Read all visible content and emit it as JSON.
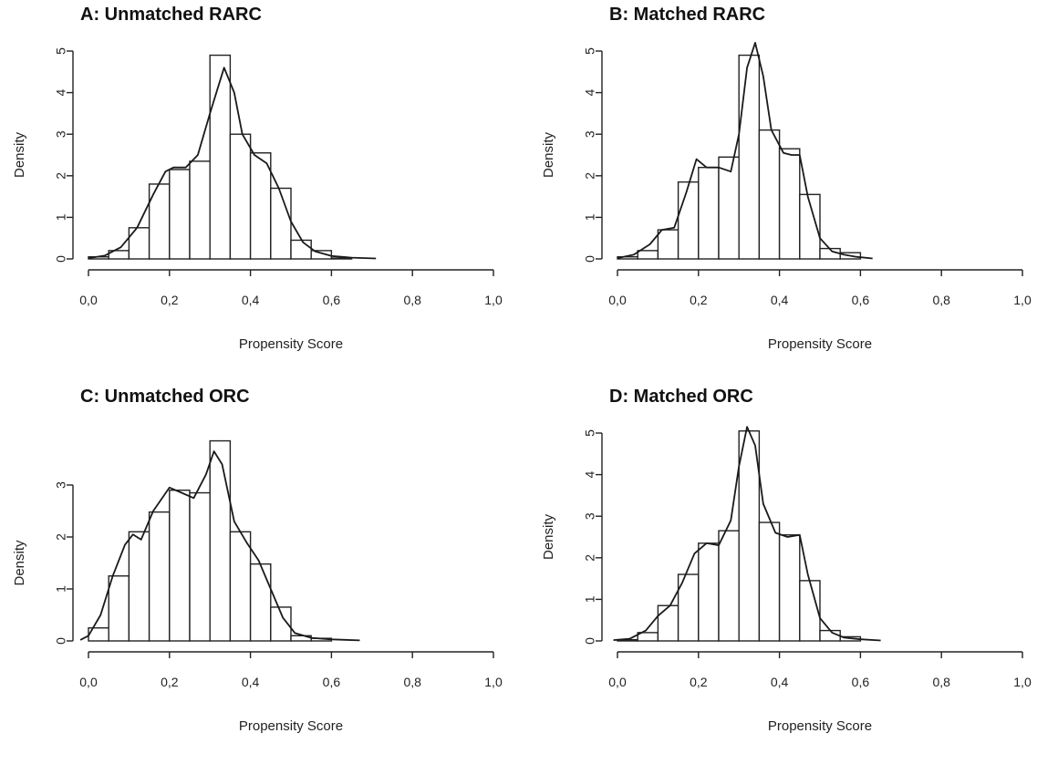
{
  "chart_data": [
    {
      "type": "bar",
      "title": "A: Unmatched RARC",
      "xlabel": "Propensity Score",
      "ylabel": "Density",
      "xlim": [
        0,
        1
      ],
      "ylim": [
        0,
        5
      ],
      "x_ticks": [
        "0,0",
        "0,2",
        "0,4",
        "0,6",
        "0,8",
        "1,0"
      ],
      "y_ticks": [
        "0",
        "1",
        "2",
        "3",
        "4",
        "5"
      ],
      "bin_width": 0.05,
      "bins": [
        {
          "x0": 0.0,
          "x1": 0.05,
          "value": 0.05
        },
        {
          "x0": 0.05,
          "x1": 0.1,
          "value": 0.2
        },
        {
          "x0": 0.1,
          "x1": 0.15,
          "value": 0.75
        },
        {
          "x0": 0.15,
          "x1": 0.2,
          "value": 1.8
        },
        {
          "x0": 0.2,
          "x1": 0.25,
          "value": 2.15
        },
        {
          "x0": 0.25,
          "x1": 0.3,
          "value": 2.35
        },
        {
          "x0": 0.3,
          "x1": 0.35,
          "value": 4.9
        },
        {
          "x0": 0.35,
          "x1": 0.4,
          "value": 3.0
        },
        {
          "x0": 0.4,
          "x1": 0.45,
          "value": 2.55
        },
        {
          "x0": 0.45,
          "x1": 0.5,
          "value": 1.7
        },
        {
          "x0": 0.5,
          "x1": 0.55,
          "value": 0.45
        },
        {
          "x0": 0.55,
          "x1": 0.6,
          "value": 0.2
        },
        {
          "x0": 0.6,
          "x1": 0.65,
          "value": 0.02
        }
      ],
      "density_curve": [
        [
          0.0,
          0.02
        ],
        [
          0.04,
          0.08
        ],
        [
          0.08,
          0.28
        ],
        [
          0.12,
          0.75
        ],
        [
          0.16,
          1.55
        ],
        [
          0.19,
          2.1
        ],
        [
          0.21,
          2.2
        ],
        [
          0.24,
          2.2
        ],
        [
          0.27,
          2.5
        ],
        [
          0.3,
          3.5
        ],
        [
          0.335,
          4.6
        ],
        [
          0.36,
          4.0
        ],
        [
          0.38,
          3.0
        ],
        [
          0.41,
          2.5
        ],
        [
          0.44,
          2.3
        ],
        [
          0.47,
          1.7
        ],
        [
          0.5,
          0.9
        ],
        [
          0.53,
          0.4
        ],
        [
          0.56,
          0.18
        ],
        [
          0.6,
          0.07
        ],
        [
          0.65,
          0.03
        ],
        [
          0.71,
          0.01
        ]
      ]
    },
    {
      "type": "bar",
      "title": "B: Matched RARC",
      "xlabel": "Propensity Score",
      "ylabel": "Density",
      "xlim": [
        0,
        1
      ],
      "ylim": [
        0,
        5
      ],
      "x_ticks": [
        "0,0",
        "0,2",
        "0,4",
        "0,6",
        "0,8",
        "1,0"
      ],
      "y_ticks": [
        "0",
        "1",
        "2",
        "3",
        "4",
        "5"
      ],
      "bin_width": 0.05,
      "bins": [
        {
          "x0": 0.0,
          "x1": 0.05,
          "value": 0.05
        },
        {
          "x0": 0.05,
          "x1": 0.1,
          "value": 0.2
        },
        {
          "x0": 0.1,
          "x1": 0.15,
          "value": 0.7
        },
        {
          "x0": 0.15,
          "x1": 0.2,
          "value": 1.85
        },
        {
          "x0": 0.2,
          "x1": 0.25,
          "value": 2.2
        },
        {
          "x0": 0.25,
          "x1": 0.3,
          "value": 2.45
        },
        {
          "x0": 0.3,
          "x1": 0.35,
          "value": 4.9
        },
        {
          "x0": 0.35,
          "x1": 0.4,
          "value": 3.1
        },
        {
          "x0": 0.4,
          "x1": 0.45,
          "value": 2.65
        },
        {
          "x0": 0.45,
          "x1": 0.5,
          "value": 1.55
        },
        {
          "x0": 0.5,
          "x1": 0.55,
          "value": 0.25
        },
        {
          "x0": 0.55,
          "x1": 0.6,
          "value": 0.15
        }
      ],
      "density_curve": [
        [
          0.0,
          0.02
        ],
        [
          0.04,
          0.1
        ],
        [
          0.08,
          0.35
        ],
        [
          0.11,
          0.7
        ],
        [
          0.14,
          0.75
        ],
        [
          0.17,
          1.6
        ],
        [
          0.195,
          2.4
        ],
        [
          0.22,
          2.2
        ],
        [
          0.25,
          2.2
        ],
        [
          0.28,
          2.1
        ],
        [
          0.3,
          3.0
        ],
        [
          0.32,
          4.6
        ],
        [
          0.34,
          5.2
        ],
        [
          0.36,
          4.4
        ],
        [
          0.38,
          3.1
        ],
        [
          0.41,
          2.55
        ],
        [
          0.43,
          2.5
        ],
        [
          0.45,
          2.5
        ],
        [
          0.47,
          1.5
        ],
        [
          0.5,
          0.5
        ],
        [
          0.53,
          0.18
        ],
        [
          0.56,
          0.1
        ],
        [
          0.59,
          0.05
        ],
        [
          0.63,
          0.01
        ]
      ]
    },
    {
      "type": "bar",
      "title": "C: Unmatched ORC",
      "xlabel": "Propensity Score",
      "ylabel": "Density",
      "xlim": [
        0,
        1
      ],
      "ylim": [
        0,
        4
      ],
      "x_ticks": [
        "0,0",
        "0,2",
        "0,4",
        "0,6",
        "0,8",
        "1,0"
      ],
      "y_ticks": [
        "0",
        "1",
        "2",
        "3"
      ],
      "bin_width": 0.05,
      "bins": [
        {
          "x0": 0.0,
          "x1": 0.05,
          "value": 0.25
        },
        {
          "x0": 0.05,
          "x1": 0.1,
          "value": 1.25
        },
        {
          "x0": 0.1,
          "x1": 0.15,
          "value": 2.1
        },
        {
          "x0": 0.15,
          "x1": 0.2,
          "value": 2.48
        },
        {
          "x0": 0.2,
          "x1": 0.25,
          "value": 2.9
        },
        {
          "x0": 0.25,
          "x1": 0.3,
          "value": 2.85
        },
        {
          "x0": 0.3,
          "x1": 0.35,
          "value": 3.85
        },
        {
          "x0": 0.35,
          "x1": 0.4,
          "value": 2.1
        },
        {
          "x0": 0.4,
          "x1": 0.45,
          "value": 1.48
        },
        {
          "x0": 0.45,
          "x1": 0.5,
          "value": 0.65
        },
        {
          "x0": 0.5,
          "x1": 0.55,
          "value": 0.1
        },
        {
          "x0": 0.55,
          "x1": 0.6,
          "value": 0.05
        }
      ],
      "density_curve": [
        [
          -0.02,
          0.02
        ],
        [
          0.0,
          0.1
        ],
        [
          0.03,
          0.5
        ],
        [
          0.06,
          1.25
        ],
        [
          0.09,
          1.85
        ],
        [
          0.11,
          2.05
        ],
        [
          0.13,
          1.95
        ],
        [
          0.16,
          2.5
        ],
        [
          0.2,
          2.95
        ],
        [
          0.23,
          2.85
        ],
        [
          0.26,
          2.75
        ],
        [
          0.29,
          3.2
        ],
        [
          0.31,
          3.65
        ],
        [
          0.33,
          3.4
        ],
        [
          0.36,
          2.3
        ],
        [
          0.39,
          1.9
        ],
        [
          0.42,
          1.55
        ],
        [
          0.45,
          1.0
        ],
        [
          0.48,
          0.45
        ],
        [
          0.51,
          0.15
        ],
        [
          0.55,
          0.06
        ],
        [
          0.6,
          0.03
        ],
        [
          0.67,
          0.01
        ]
      ]
    },
    {
      "type": "bar",
      "title": "D: Matched ORC",
      "xlabel": "Propensity Score",
      "ylabel": "Density",
      "xlim": [
        0,
        1
      ],
      "ylim": [
        0,
        5
      ],
      "x_ticks": [
        "0,0",
        "0,2",
        "0,4",
        "0,6",
        "0,8",
        "1,0"
      ],
      "y_ticks": [
        "0",
        "1",
        "2",
        "3",
        "4",
        "5"
      ],
      "bin_width": 0.05,
      "bins": [
        {
          "x0": 0.0,
          "x1": 0.05,
          "value": 0.03
        },
        {
          "x0": 0.05,
          "x1": 0.1,
          "value": 0.2
        },
        {
          "x0": 0.1,
          "x1": 0.15,
          "value": 0.85
        },
        {
          "x0": 0.15,
          "x1": 0.2,
          "value": 1.6
        },
        {
          "x0": 0.2,
          "x1": 0.25,
          "value": 2.35
        },
        {
          "x0": 0.25,
          "x1": 0.3,
          "value": 2.65
        },
        {
          "x0": 0.3,
          "x1": 0.35,
          "value": 5.05
        },
        {
          "x0": 0.35,
          "x1": 0.4,
          "value": 2.85
        },
        {
          "x0": 0.4,
          "x1": 0.45,
          "value": 2.55
        },
        {
          "x0": 0.45,
          "x1": 0.5,
          "value": 1.45
        },
        {
          "x0": 0.5,
          "x1": 0.55,
          "value": 0.25
        },
        {
          "x0": 0.55,
          "x1": 0.6,
          "value": 0.1
        }
      ],
      "density_curve": [
        [
          -0.01,
          0.02
        ],
        [
          0.03,
          0.05
        ],
        [
          0.07,
          0.25
        ],
        [
          0.1,
          0.6
        ],
        [
          0.13,
          0.85
        ],
        [
          0.16,
          1.4
        ],
        [
          0.19,
          2.1
        ],
        [
          0.22,
          2.35
        ],
        [
          0.25,
          2.3
        ],
        [
          0.28,
          2.9
        ],
        [
          0.3,
          4.2
        ],
        [
          0.32,
          5.15
        ],
        [
          0.34,
          4.7
        ],
        [
          0.36,
          3.3
        ],
        [
          0.39,
          2.6
        ],
        [
          0.42,
          2.5
        ],
        [
          0.45,
          2.55
        ],
        [
          0.47,
          1.6
        ],
        [
          0.5,
          0.55
        ],
        [
          0.53,
          0.2
        ],
        [
          0.56,
          0.08
        ],
        [
          0.6,
          0.04
        ],
        [
          0.65,
          0.01
        ]
      ]
    }
  ]
}
